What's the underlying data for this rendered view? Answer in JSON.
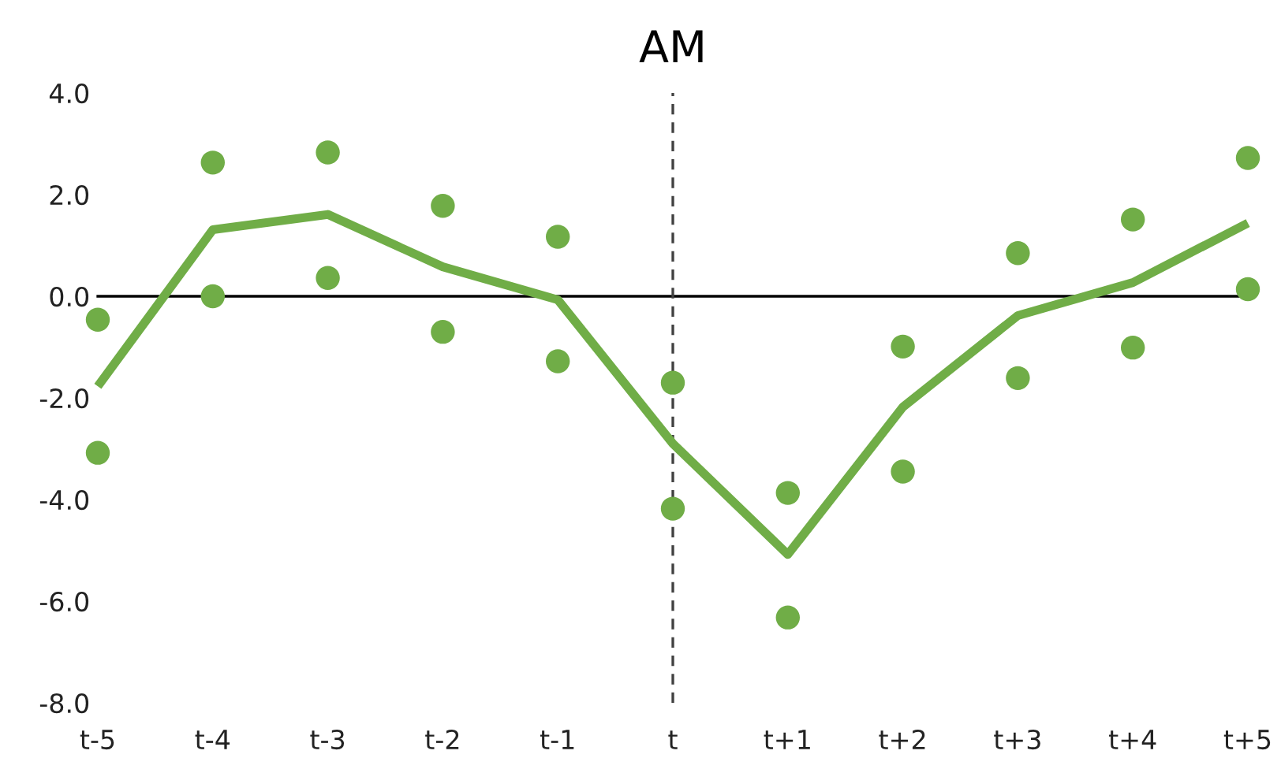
{
  "chart_data": {
    "type": "line",
    "title": "AM",
    "categories": [
      "t-5",
      "t-4",
      "t-3",
      "t-2",
      "t-1",
      "t",
      "t+1",
      "t+2",
      "t+3",
      "t+4",
      "t+5"
    ],
    "series": [
      {
        "type": "scatter",
        "color": "#70ad47",
        "marker": "circle",
        "values": [
          -0.46,
          2.63,
          2.83,
          1.78,
          1.17,
          -1.7,
          -3.87,
          -0.99,
          0.85,
          1.51,
          2.72
        ]
      },
      {
        "type": "scatter",
        "color": "#70ad47",
        "marker": "circle",
        "values": [
          -3.08,
          0.0,
          0.36,
          -0.7,
          -1.28,
          -4.18,
          -6.32,
          -3.45,
          -1.61,
          -1.01,
          0.14
        ]
      },
      {
        "color": "#70ad47",
        "line_style": "solid",
        "values": [
          -1.77,
          1.31,
          1.61,
          0.58,
          -0.07,
          -2.9,
          -5.08,
          -2.18,
          -0.38,
          0.27,
          1.44
        ]
      }
    ],
    "ylim": [
      -8.0,
      4.0
    ],
    "yticks": [
      {
        "value": -8,
        "label": "-8.0"
      },
      {
        "value": -6,
        "label": "-6.0"
      },
      {
        "value": -4,
        "label": "-4.0"
      },
      {
        "value": -2,
        "label": "-2.0"
      },
      {
        "value": 0,
        "label": "0.0"
      },
      {
        "value": 2,
        "label": "2.0"
      },
      {
        "value": 4,
        "label": "4.0"
      }
    ],
    "ref_lines": [
      {
        "axis": "y",
        "value": 0,
        "color": "#000000",
        "line_style": "solid"
      },
      {
        "axis": "x",
        "value": "t",
        "color": "#404040",
        "line_style": "dashed"
      }
    ],
    "grid": false,
    "legend": false
  }
}
